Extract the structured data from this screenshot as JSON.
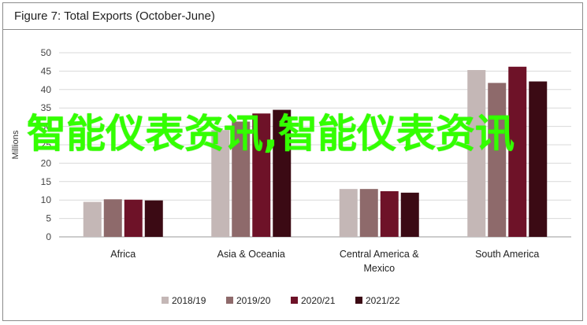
{
  "title": "Figure 7: Total Exports (October-June)",
  "watermark_text": "智能仪表资讯,智能仪表资讯",
  "chart_data": {
    "type": "bar",
    "title": "Figure 7: Total Exports (October-June)",
    "ylabel": "Millions",
    "xlabel": "",
    "ylim": [
      0,
      50
    ],
    "yticks": [
      0,
      5,
      10,
      15,
      20,
      25,
      30,
      35,
      40,
      45,
      50
    ],
    "grid": true,
    "legend_position": "bottom",
    "categories": [
      [
        "Africa"
      ],
      [
        "Asia & Oceania"
      ],
      [
        "Central America &",
        "Mexico"
      ],
      [
        "South America"
      ]
    ],
    "series": [
      {
        "name": "2018/19",
        "color": "#c4b7b6",
        "values": [
          9.5,
          29,
          13,
          45.3
        ]
      },
      {
        "name": "2019/20",
        "color": "#8e6a6b",
        "values": [
          10.2,
          31.3,
          13,
          41.8
        ]
      },
      {
        "name": "2020/21",
        "color": "#6e1228",
        "values": [
          10.1,
          33.5,
          12.4,
          46.2
        ]
      },
      {
        "name": "2021/22",
        "color": "#3b0a14",
        "values": [
          9.9,
          34.5,
          12,
          42.2
        ]
      }
    ]
  }
}
